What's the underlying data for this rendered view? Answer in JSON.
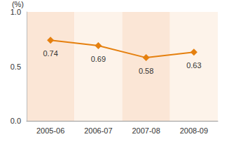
{
  "chart_data": {
    "type": "line",
    "y_label": "(%)",
    "categories": [
      "2005-06",
      "2006-07",
      "2007-08",
      "2008-09"
    ],
    "values": [
      0.74,
      0.69,
      0.58,
      0.63
    ],
    "color": "#e5800f",
    "marker": "diamond",
    "ylim": [
      0,
      1
    ],
    "yticks": [
      {
        "value": 0,
        "label": "0.0"
      },
      {
        "value": 0.5,
        "label": "0.5"
      },
      {
        "value": 1,
        "label": "1.0"
      }
    ],
    "grid": false,
    "data_labels": true
  }
}
